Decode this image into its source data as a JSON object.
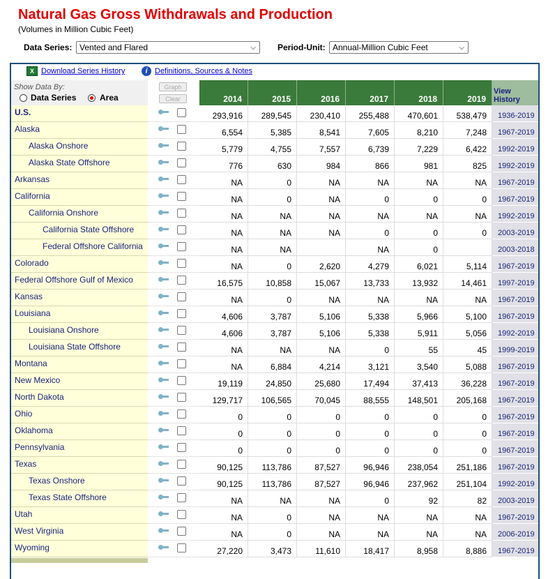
{
  "title": "Natural Gas Gross Withdrawals and Production",
  "subtitle": "(Volumes in Million Cubic Feet)",
  "controls": {
    "data_series_label": "Data Series:",
    "data_series_value": "Vented and Flared",
    "period_unit_label": "Period-Unit:",
    "period_unit_value": "Annual-Million Cubic Feet"
  },
  "toolbar": {
    "download_label": "Download Series History",
    "definitions_label": "Definitions, Sources & Notes"
  },
  "header": {
    "show_data_by": "Show Data By:",
    "option_series": "Data Series",
    "option_area": "Area",
    "graph_button": "Graph",
    "clear_button": "Clear",
    "years": [
      "2014",
      "2015",
      "2016",
      "2017",
      "2018",
      "2019"
    ],
    "view_history": "View History"
  },
  "rows": [
    {
      "name": "U.S.",
      "level": 0,
      "values": [
        "293,916",
        "289,545",
        "230,410",
        "255,488",
        "470,601",
        "538,479"
      ],
      "history": "1936-2019"
    },
    {
      "name": "Alaska",
      "level": 1,
      "values": [
        "6,554",
        "5,385",
        "8,541",
        "7,605",
        "8,210",
        "7,248"
      ],
      "history": "1967-2019"
    },
    {
      "name": "Alaska Onshore",
      "level": 2,
      "values": [
        "5,779",
        "4,755",
        "7,557",
        "6,739",
        "7,229",
        "6,422"
      ],
      "history": "1992-2019"
    },
    {
      "name": "Alaska State Offshore",
      "level": 2,
      "values": [
        "776",
        "630",
        "984",
        "866",
        "981",
        "825"
      ],
      "history": "1992-2019"
    },
    {
      "name": "Arkansas",
      "level": 1,
      "values": [
        "NA",
        "0",
        "NA",
        "NA",
        "NA",
        "NA"
      ],
      "history": "1967-2019"
    },
    {
      "name": "California",
      "level": 1,
      "values": [
        "NA",
        "0",
        "NA",
        "0",
        "0",
        "0"
      ],
      "history": "1967-2019"
    },
    {
      "name": "California Onshore",
      "level": 2,
      "values": [
        "NA",
        "NA",
        "NA",
        "NA",
        "NA",
        "NA"
      ],
      "history": "1992-2019"
    },
    {
      "name": "California State Offshore",
      "level": 3,
      "values": [
        "NA",
        "NA",
        "NA",
        "0",
        "0",
        "0"
      ],
      "history": "2003-2019"
    },
    {
      "name": "Federal Offshore California",
      "level": 3,
      "values": [
        "NA",
        "NA",
        "",
        "NA",
        "0",
        ""
      ],
      "history": "2003-2018"
    },
    {
      "name": "Colorado",
      "level": 1,
      "values": [
        "NA",
        "0",
        "2,620",
        "4,279",
        "6,021",
        "5,114"
      ],
      "history": "1967-2019"
    },
    {
      "name": "Federal Offshore Gulf of Mexico",
      "level": 1,
      "values": [
        "16,575",
        "10,858",
        "15,067",
        "13,733",
        "13,932",
        "14,461"
      ],
      "history": "1997-2019"
    },
    {
      "name": "Kansas",
      "level": 1,
      "values": [
        "NA",
        "0",
        "NA",
        "NA",
        "NA",
        "NA"
      ],
      "history": "1967-2019"
    },
    {
      "name": "Louisiana",
      "level": 1,
      "values": [
        "4,606",
        "3,787",
        "5,106",
        "5,338",
        "5,966",
        "5,100"
      ],
      "history": "1967-2019"
    },
    {
      "name": "Louisiana Onshore",
      "level": 2,
      "values": [
        "4,606",
        "3,787",
        "5,106",
        "5,338",
        "5,911",
        "5,056"
      ],
      "history": "1992-2019"
    },
    {
      "name": "Louisiana State Offshore",
      "level": 2,
      "values": [
        "NA",
        "NA",
        "NA",
        "0",
        "55",
        "45"
      ],
      "history": "1999-2019"
    },
    {
      "name": "Montana",
      "level": 1,
      "values": [
        "NA",
        "6,884",
        "4,214",
        "3,121",
        "3,540",
        "5,088"
      ],
      "history": "1967-2019"
    },
    {
      "name": "New Mexico",
      "level": 1,
      "values": [
        "19,119",
        "24,850",
        "25,680",
        "17,494",
        "37,413",
        "36,228"
      ],
      "history": "1967-2019"
    },
    {
      "name": "North Dakota",
      "level": 1,
      "values": [
        "129,717",
        "106,565",
        "70,045",
        "88,555",
        "148,501",
        "205,168"
      ],
      "history": "1967-2019"
    },
    {
      "name": "Ohio",
      "level": 1,
      "values": [
        "0",
        "0",
        "0",
        "0",
        "0",
        "0"
      ],
      "history": "1967-2019"
    },
    {
      "name": "Oklahoma",
      "level": 1,
      "values": [
        "0",
        "0",
        "0",
        "0",
        "0",
        "0"
      ],
      "history": "1967-2019"
    },
    {
      "name": "Pennsylvania",
      "level": 1,
      "values": [
        "0",
        "0",
        "0",
        "0",
        "0",
        "0"
      ],
      "history": "1967-2019"
    },
    {
      "name": "Texas",
      "level": 1,
      "values": [
        "90,125",
        "113,786",
        "87,527",
        "96,946",
        "238,054",
        "251,186"
      ],
      "history": "1967-2019"
    },
    {
      "name": "Texas Onshore",
      "level": 2,
      "values": [
        "90,125",
        "113,786",
        "87,527",
        "96,946",
        "237,962",
        "251,104"
      ],
      "history": "1992-2019"
    },
    {
      "name": "Texas State Offshore",
      "level": 2,
      "values": [
        "NA",
        "NA",
        "NA",
        "0",
        "92",
        "82"
      ],
      "history": "2003-2019"
    },
    {
      "name": "Utah",
      "level": 1,
      "values": [
        "NA",
        "0",
        "NA",
        "NA",
        "NA",
        "NA"
      ],
      "history": "1967-2019"
    },
    {
      "name": "West Virginia",
      "level": 1,
      "values": [
        "NA",
        "0",
        "NA",
        "NA",
        "NA",
        "NA"
      ],
      "history": "2006-2019"
    },
    {
      "name": "Wyoming",
      "level": 1,
      "values": [
        "27,220",
        "3,473",
        "11,610",
        "18,417",
        "8,958",
        "8,886"
      ],
      "history": "1967-2019"
    }
  ]
}
